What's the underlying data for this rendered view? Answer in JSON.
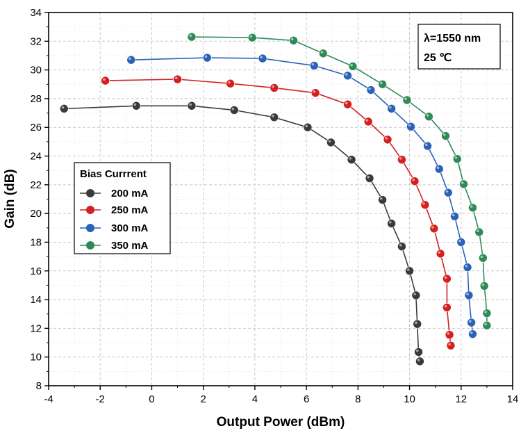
{
  "chart_data": {
    "type": "line",
    "xlabel": "Output Power (dBm)",
    "ylabel": "Gain (dB)",
    "xlim": [
      -4,
      14
    ],
    "ylim": [
      8,
      34
    ],
    "xticks": [
      -4,
      -2,
      0,
      2,
      4,
      6,
      8,
      10,
      12,
      14
    ],
    "yticks": [
      8,
      10,
      12,
      14,
      16,
      18,
      20,
      22,
      24,
      26,
      28,
      30,
      32,
      34
    ],
    "grid": true,
    "legend": {
      "title": "Bias Currrent",
      "placement": "middle-left"
    },
    "annotations": [
      "λ=1550 nm",
      "25 ℃"
    ],
    "series": [
      {
        "name": "200 mA",
        "color": "#3a3a3a",
        "x": [
          -3.4,
          -0.6,
          1.55,
          3.2,
          4.75,
          6.05,
          6.95,
          7.75,
          8.45,
          8.95,
          9.3,
          9.7,
          10.0,
          10.25,
          10.3,
          10.35,
          10.4
        ],
        "y": [
          27.3,
          27.5,
          27.5,
          27.2,
          26.7,
          26.0,
          24.95,
          23.75,
          22.45,
          20.95,
          19.3,
          17.7,
          16.0,
          14.3,
          12.3,
          10.35,
          9.7
        ]
      },
      {
        "name": "250 mA",
        "color": "#d42020",
        "x": [
          -1.8,
          1.0,
          3.05,
          4.75,
          6.35,
          7.6,
          8.4,
          9.15,
          9.7,
          10.2,
          10.6,
          10.95,
          11.2,
          11.45,
          11.45,
          11.55,
          11.6
        ],
        "y": [
          29.25,
          29.35,
          29.05,
          28.75,
          28.4,
          27.6,
          26.4,
          25.15,
          23.75,
          22.25,
          20.6,
          18.95,
          17.2,
          15.45,
          13.45,
          11.55,
          10.8
        ]
      },
      {
        "name": "300 mA",
        "color": "#2a62b8",
        "x": [
          -0.8,
          2.15,
          4.3,
          6.3,
          7.6,
          8.5,
          9.3,
          10.05,
          10.7,
          11.15,
          11.5,
          11.75,
          12.0,
          12.25,
          12.3,
          12.4,
          12.45
        ],
        "y": [
          30.7,
          30.85,
          30.8,
          30.3,
          29.6,
          28.6,
          27.3,
          26.05,
          24.7,
          23.1,
          21.45,
          19.8,
          18.0,
          16.25,
          14.3,
          12.4,
          11.6
        ]
      },
      {
        "name": "350 mA",
        "color": "#2e8b57",
        "x": [
          1.55,
          3.9,
          5.5,
          6.65,
          7.8,
          8.95,
          9.9,
          10.75,
          11.4,
          11.85,
          12.1,
          12.45,
          12.7,
          12.85,
          12.9,
          13.0,
          13.0
        ],
        "y": [
          32.3,
          32.25,
          32.05,
          31.15,
          30.25,
          29.0,
          27.9,
          26.75,
          25.4,
          23.8,
          22.05,
          20.4,
          18.7,
          16.9,
          14.95,
          13.05,
          12.2
        ]
      }
    ]
  }
}
